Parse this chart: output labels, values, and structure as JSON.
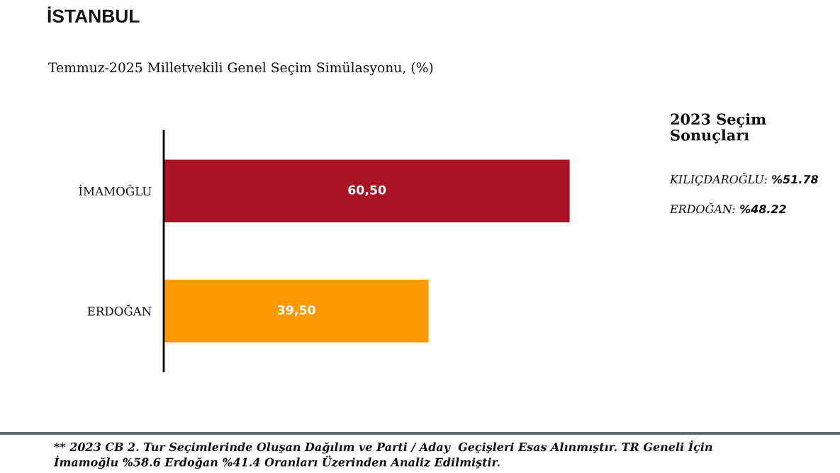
{
  "chart_data": [
    {
      "type": "bar",
      "title": "İSTANBUL",
      "subtitle": "Temmuz-2025 Milletvekili Genel Seçim Simülasyonu, (%)",
      "orientation": "horizontal",
      "categories": [
        "İMAMOĞLU",
        "ERDOĞAN"
      ],
      "values": [
        60.5,
        39.5
      ],
      "colors": [
        "#a91324",
        "#fa9a00"
      ],
      "value_labels": [
        "60,50",
        "39,50"
      ],
      "tick_labels": "y",
      "annotations": [
        "** 2023 CB 2. Tur Seçimlerinde Oluşan Dağılım ve Parti / Aday  Geçişleri Esas Alınmıştır. TR Geneli İçin İmamoğlu %58.6 Erdoğan %41.4 Oranları Üzerinden Analiz Edilmiştir."
      ]
    },
    {
      "type": "other",
      "title": "2023 Seçim Sonuçları",
      "annotations": [
        "KILIÇDAROĞLU: %51.78",
        "ERDOĞAN: %48.22"
      ]
    }
  ]
}
